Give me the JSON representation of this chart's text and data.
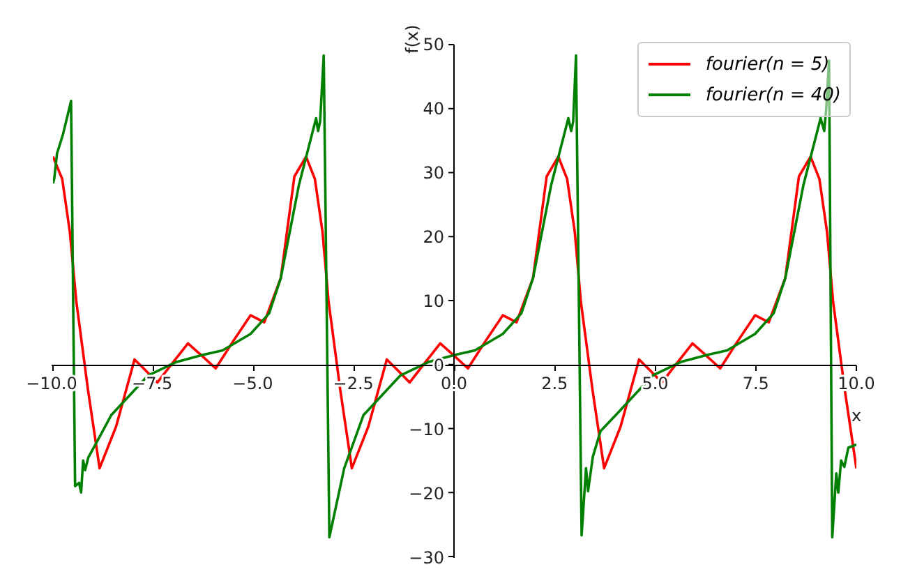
{
  "chart_data": {
    "type": "line",
    "xlabel": "x",
    "ylabel": "f(x)",
    "xlim": [
      -10,
      10
    ],
    "ylim": [
      -30,
      50
    ],
    "xticks": [
      {
        "value": -10,
        "label": "−10.0"
      },
      {
        "value": -7.5,
        "label": "−7.5"
      },
      {
        "value": -5,
        "label": "−5.0"
      },
      {
        "value": -2.5,
        "label": "−2.5"
      },
      {
        "value": 0,
        "label": "0.0"
      },
      {
        "value": 2.5,
        "label": "2.5"
      },
      {
        "value": 5,
        "label": "5.0"
      },
      {
        "value": 7.5,
        "label": "7.5"
      },
      {
        "value": 10,
        "label": "10.0"
      }
    ],
    "yticks": [
      {
        "value": -30,
        "label": "−30"
      },
      {
        "value": -20,
        "label": "−20"
      },
      {
        "value": -10,
        "label": "−10"
      },
      0,
      10,
      20,
      30,
      40,
      50
    ],
    "legend": "top right",
    "series": [
      {
        "name": "fourier(n = 5)",
        "color": "#ff0000",
        "x": [
          -10,
          -9.77,
          -9.58,
          -9.42,
          -9.13,
          -8.84,
          -8.43,
          -7.97,
          -7.68,
          -7.4,
          -7.03,
          -6.64,
          -6.28,
          -5.95,
          -5.53,
          -5.08,
          -4.74,
          -4.33,
          -3.99,
          -3.7,
          -3.48,
          -3.29,
          -3.14,
          -2.85,
          -2.56,
          -2.15,
          -1.69,
          -1.4,
          -1.12,
          -0.75,
          -0.36,
          0,
          0.33,
          0.75,
          1.2,
          1.54,
          1.95,
          2.29,
          2.58,
          2.8,
          2.99,
          3.14,
          3.43,
          3.72,
          4.13,
          4.59,
          4.88,
          5.16,
          5.53,
          5.92,
          6.28,
          6.61,
          7.03,
          7.48,
          7.82,
          8.23,
          8.57,
          8.86,
          9.08,
          9.27,
          9.42,
          9.71,
          10
        ],
        "values": [
          32.5,
          29,
          20.7,
          9.9,
          -3.9,
          -16.2,
          -9.7,
          0.8,
          -1,
          -2.8,
          0.2,
          3.3,
          1.3,
          -0.6,
          3.5,
          7.7,
          6.6,
          13.5,
          29.4,
          32.5,
          29,
          20.7,
          9.9,
          -3.9,
          -16.2,
          -9.7,
          0.8,
          -1,
          -2.8,
          0.2,
          3.3,
          1.3,
          -0.6,
          3.5,
          7.7,
          6.6,
          13.5,
          29.4,
          32.5,
          29,
          20.7,
          9.9,
          -3.9,
          -16.2,
          -9.7,
          0.8,
          -1,
          -2.8,
          0.2,
          3.3,
          1.3,
          -0.6,
          3.5,
          7.7,
          6.6,
          13.5,
          29.4,
          32.5,
          29,
          20.7,
          9.9,
          -3.9,
          -16.2
        ]
      },
      {
        "name": "fourier(n = 40)",
        "color": "#008000",
        "x": [
          -10,
          -9.97,
          -9.9,
          -9.75,
          -9.55,
          -9.45,
          -9.35,
          -9.3,
          -9.25,
          -9.2,
          -9.12,
          -8.9,
          -8.55,
          -7.63,
          -6.93,
          -6.28,
          -5.78,
          -5.08,
          -4.62,
          -4.33,
          -3.88,
          -3.45,
          -3.4,
          -3.35,
          -3.26,
          -3.12,
          -2.75,
          -2.27,
          -1.35,
          -0.65,
          0,
          0.5,
          1.2,
          1.66,
          1.95,
          2.4,
          2.83,
          2.9,
          2.95,
          3.02,
          3.16,
          3.27,
          3.32,
          3.44,
          3.63,
          4.01,
          4.93,
          5.63,
          6.28,
          6.78,
          7.48,
          7.94,
          8.23,
          8.68,
          9.11,
          9.2,
          9.25,
          9.32,
          9.4,
          9.5,
          9.55,
          9.62,
          9.7,
          9.8,
          10
        ],
        "values": [
          28.3,
          29,
          33,
          36,
          41.2,
          -19,
          -18.5,
          -20,
          -15,
          -16.5,
          -14.5,
          -12,
          -7.9,
          -1.7,
          0.4,
          1.5,
          2.2,
          4.8,
          8,
          13.5,
          28,
          38.5,
          36.5,
          38,
          48.3,
          -27,
          -16.2,
          -7.9,
          -1.7,
          0.4,
          1.5,
          2.2,
          4.8,
          8,
          13.5,
          28,
          38.5,
          36.5,
          38,
          48.3,
          -26.7,
          -16.2,
          -19.8,
          -14.4,
          -10.4,
          -7.9,
          -1.7,
          0.4,
          1.5,
          2.2,
          4.8,
          8,
          13.5,
          28,
          38.5,
          36.5,
          40,
          47.5,
          -27,
          -17,
          -20,
          -15,
          -16,
          -13,
          -12.5
        ]
      }
    ]
  }
}
